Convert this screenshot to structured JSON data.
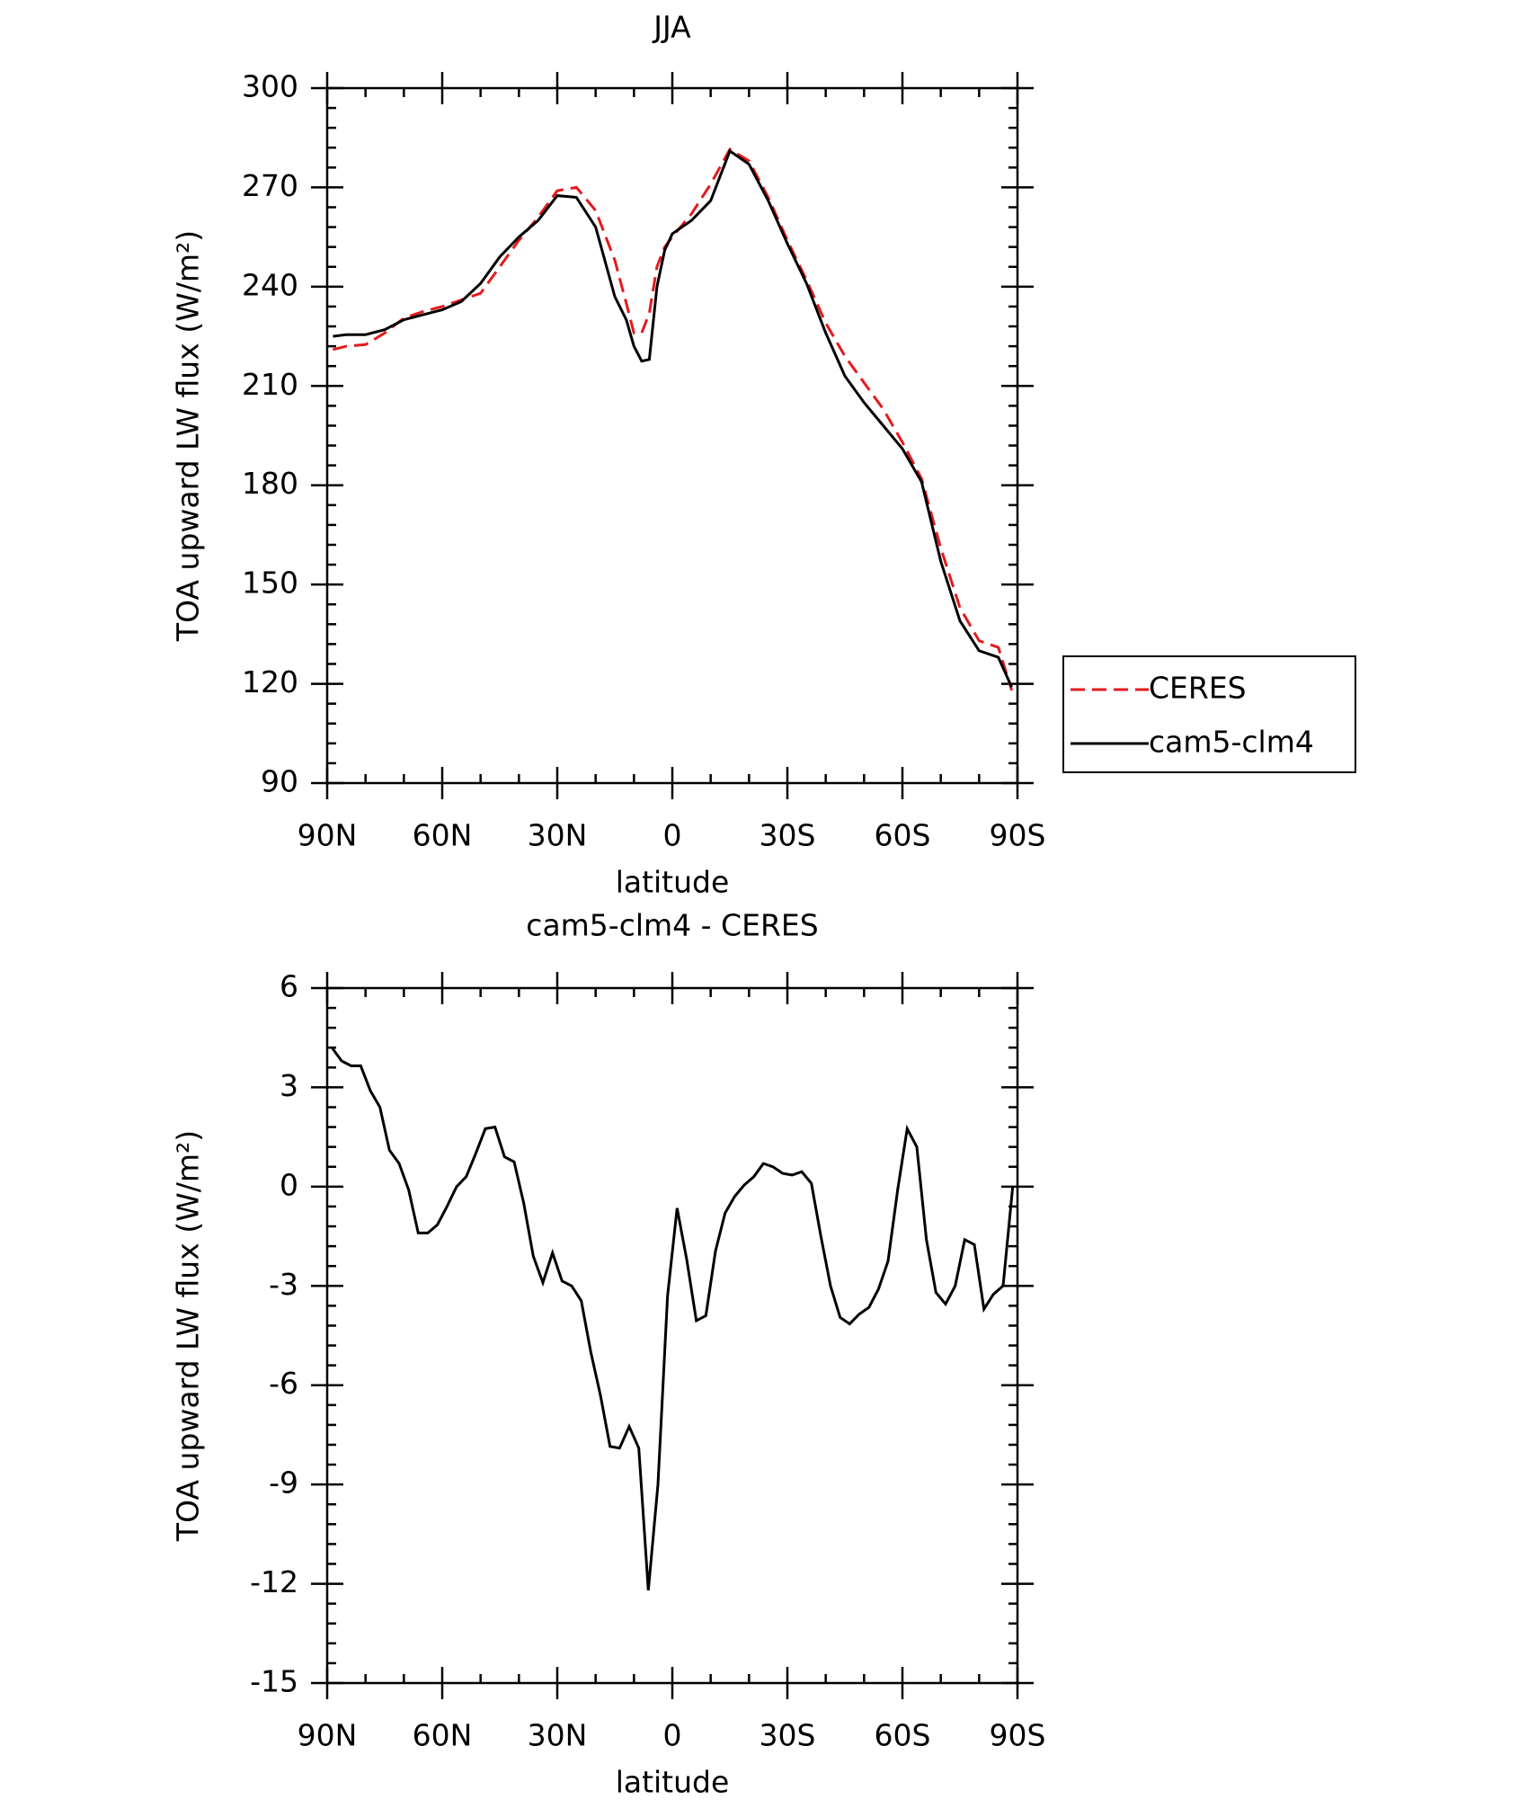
{
  "chart_data": [
    {
      "type": "line",
      "title": "JJA",
      "xlabel": "latitude",
      "ylabel": "TOA upward LW flux (W/m²)",
      "xlim": [
        90,
        -90
      ],
      "ylim": [
        90,
        300
      ],
      "xticks": [
        {
          "value": 90,
          "label": "90N"
        },
        {
          "value": 60,
          "label": "60N"
        },
        {
          "value": 30,
          "label": "30N"
        },
        0,
        {
          "value": -30,
          "label": "30S"
        },
        {
          "value": -60,
          "label": "60S"
        },
        {
          "value": -90,
          "label": "90S"
        }
      ],
      "yticks": [
        90,
        120,
        150,
        180,
        210,
        240,
        270,
        300
      ],
      "legend": "right",
      "x": [
        88.5,
        85,
        80,
        75,
        70,
        65,
        60,
        55,
        50,
        45,
        40,
        35,
        30,
        25,
        20,
        15,
        12,
        10,
        8,
        6,
        4,
        2,
        0,
        -5,
        -10,
        -15,
        -20,
        -25,
        -30,
        -35,
        -40,
        -45,
        -50,
        -55,
        -60,
        -65,
        -70,
        -75,
        -80,
        -85,
        -88.5
      ],
      "series": [
        {
          "name": "CERES",
          "color": "#e41a1c",
          "dash": true,
          "values": [
            221,
            222,
            222.5,
            226,
            230.5,
            232.5,
            234,
            236,
            238,
            246,
            254,
            261,
            269,
            270,
            263,
            248,
            235,
            226,
            226,
            232,
            246,
            252,
            255,
            262,
            271,
            281.5,
            278,
            267,
            254,
            242,
            229,
            219,
            211,
            203,
            193,
            182,
            161,
            143,
            133,
            131,
            118
          ]
        },
        {
          "name": "cam5-clm4",
          "color": "#000000",
          "dash": false,
          "values": [
            225,
            225.5,
            225.5,
            227,
            230,
            231.5,
            233,
            235.5,
            241,
            249,
            255,
            260,
            267.5,
            267,
            258,
            237,
            230,
            222,
            217.5,
            218,
            240,
            251,
            256,
            260,
            266,
            281,
            277,
            266,
            253,
            241,
            226,
            213,
            205,
            198,
            191,
            181,
            157,
            139,
            130,
            128,
            119
          ]
        }
      ]
    },
    {
      "type": "line",
      "title": "cam5-clm4 - CERES",
      "xlabel": "latitude",
      "ylabel": "TOA upward LW flux (W/m²)",
      "xlim": [
        90,
        -90
      ],
      "ylim": [
        -15,
        6
      ],
      "xticks": [
        {
          "value": 90,
          "label": "90N"
        },
        {
          "value": 60,
          "label": "60N"
        },
        {
          "value": 30,
          "label": "30N"
        },
        0,
        {
          "value": -30,
          "label": "30S"
        },
        {
          "value": -60,
          "label": "60S"
        },
        {
          "value": -90,
          "label": "90S"
        }
      ],
      "yticks": [
        -15,
        -12,
        -9,
        -6,
        -3,
        0,
        3,
        6
      ],
      "x": [
        88.75,
        86.25,
        83.75,
        81.25,
        78.75,
        76.25,
        73.75,
        71.25,
        68.75,
        66.25,
        63.75,
        61.25,
        58.75,
        56.25,
        53.75,
        51.25,
        48.75,
        46.25,
        43.75,
        41.25,
        38.75,
        36.25,
        33.75,
        31.25,
        28.75,
        26.25,
        23.75,
        21.25,
        18.75,
        16.25,
        13.75,
        11.25,
        8.75,
        6.25,
        3.75,
        1.25,
        -1.25,
        -3.75,
        -6.25,
        -8.75,
        -11.25,
        -13.75,
        -16.25,
        -18.75,
        -21.25,
        -23.75,
        -26.25,
        -28.75,
        -31.25,
        -33.75,
        -36.25,
        -38.75,
        -41.25,
        -43.75,
        -46.25,
        -48.75,
        -51.25,
        -53.75,
        -56.25,
        -58.75,
        -61.25,
        -63.75,
        -66.25,
        -68.75,
        -71.25,
        -73.75,
        -76.25,
        -78.75,
        -81.25,
        -83.75,
        -86.25,
        -88.75
      ],
      "series": [
        {
          "color": "#000000",
          "dash": false,
          "values": [
            4.2,
            3.8,
            3.65,
            3.65,
            2.9,
            2.4,
            1.1,
            0.7,
            -0.1,
            -1.4,
            -1.4,
            -1.15,
            -0.6,
            0.0,
            0.3,
            1.0,
            1.75,
            1.8,
            0.9,
            0.75,
            -0.5,
            -2.1,
            -2.9,
            -2.0,
            -2.85,
            -3.0,
            -3.45,
            -5.0,
            -6.3,
            -7.85,
            -7.9,
            -7.25,
            -7.9,
            -12.2,
            -9.0,
            -3.3,
            -0.65,
            -2.2,
            -4.05,
            -3.9,
            -1.95,
            -0.8,
            -0.3,
            0.05,
            0.3,
            0.7,
            0.6,
            0.4,
            0.35,
            0.45,
            0.1,
            -1.5,
            -3.0,
            -3.95,
            -4.15,
            -3.85,
            -3.65,
            -3.1,
            -2.25,
            -0.1,
            1.75,
            1.2,
            -1.6,
            -3.2,
            -3.55,
            -3.0,
            -1.6,
            -1.75,
            -3.7,
            -3.25,
            -3.0,
            0.0
          ]
        }
      ]
    }
  ]
}
